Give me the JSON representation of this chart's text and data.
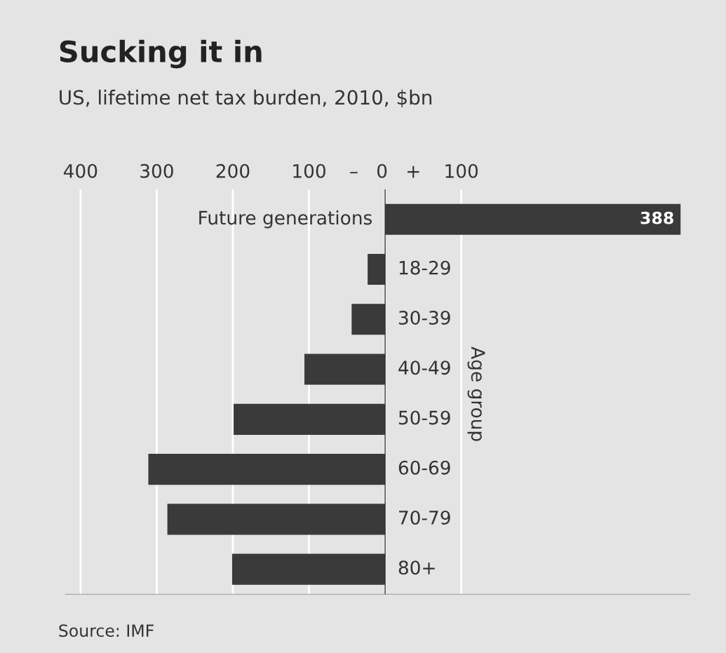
{
  "chart_data": {
    "type": "bar",
    "orientation": "horizontal",
    "title": "Sucking it in",
    "subtitle": "US, lifetime net tax burden, 2010, $bn",
    "ylabel": "Age group",
    "categories": [
      "Future generations",
      "18-29",
      "30-39",
      "40-49",
      "50-59",
      "60-69",
      "70-79",
      "80+"
    ],
    "values": [
      388,
      -23,
      -44,
      -106,
      -199,
      -311,
      -286,
      -201
    ],
    "value_labels": [
      "388",
      null,
      null,
      null,
      null,
      null,
      null,
      null
    ],
    "color": "#3a3a3a",
    "xlim": [
      -420,
      400
    ],
    "xticks": [
      {
        "value": -400,
        "label": "400"
      },
      {
        "value": -300,
        "label": "300"
      },
      {
        "value": -200,
        "label": "200"
      },
      {
        "value": -100,
        "label": "100"
      },
      {
        "value": 0,
        "label": "–   0   +"
      },
      100
    ],
    "grid": "x",
    "legend": false,
    "annotations": [
      "Source: IMF"
    ]
  }
}
